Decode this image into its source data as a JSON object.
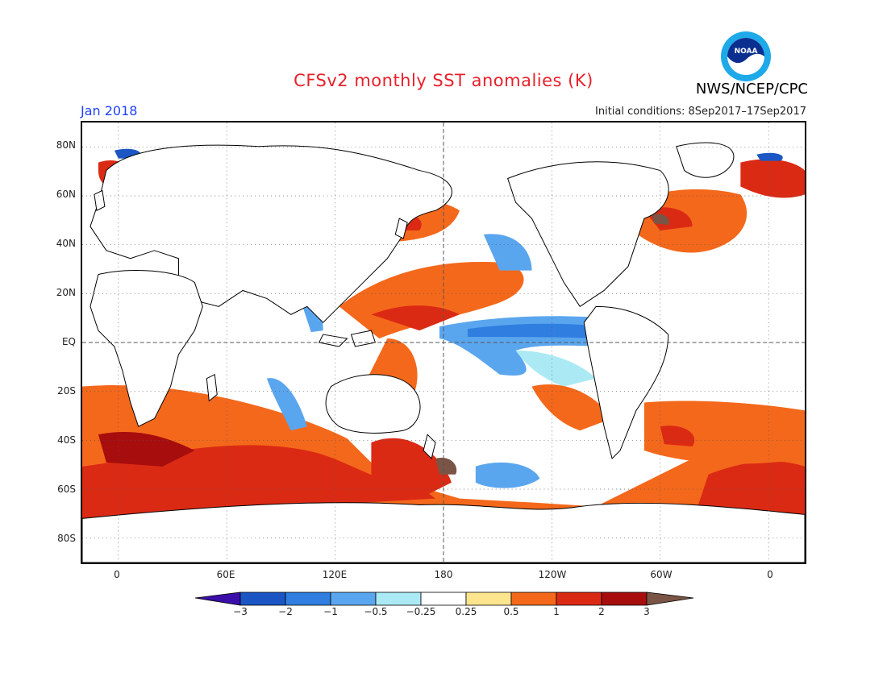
{
  "header": {
    "title": "CFSv2 monthly SST anomalies (K)",
    "organization": "NWS/NCEP/CPC",
    "logo_text": "NOAA",
    "period": "Jan 2018",
    "initial_conditions": "Initial conditions: 8Sep2017–17Sep2017"
  },
  "map": {
    "lon_range": [
      -20,
      380
    ],
    "lat_range": [
      -90,
      90
    ],
    "y_ticks": [
      {
        "lat": 80,
        "label": "80N"
      },
      {
        "lat": 60,
        "label": "60N"
      },
      {
        "lat": 40,
        "label": "40N"
      },
      {
        "lat": 20,
        "label": "20N"
      },
      {
        "lat": 0,
        "label": "EQ"
      },
      {
        "lat": -20,
        "label": "20S"
      },
      {
        "lat": -40,
        "label": "40S"
      },
      {
        "lat": -60,
        "label": "60S"
      },
      {
        "lat": -80,
        "label": "80S"
      }
    ],
    "x_ticks": [
      {
        "lon": 0,
        "label": "0"
      },
      {
        "lon": 60,
        "label": "60E"
      },
      {
        "lon": 120,
        "label": "120E"
      },
      {
        "lon": 180,
        "label": "180"
      },
      {
        "lon": 240,
        "label": "120W"
      },
      {
        "lon": 300,
        "label": "60W"
      },
      {
        "lon": 360,
        "label": "0"
      }
    ],
    "gridlines": "dotted",
    "dashed_lines": [
      "equator",
      "180"
    ]
  },
  "colorbar": {
    "bounds": [
      "−3",
      "−2",
      "−1",
      "−0.5",
      "−0.25",
      "0.25",
      "0.5",
      "1",
      "2",
      "3"
    ],
    "colors": [
      "#3a0ea8",
      "#1b56c4",
      "#2f7ee0",
      "#5aa6ee",
      "#abeaf4",
      "#ffffff",
      "#fde58e",
      "#f4681b",
      "#db2a14",
      "#a80d0d",
      "#7a5545"
    ],
    "extend": "both"
  }
}
